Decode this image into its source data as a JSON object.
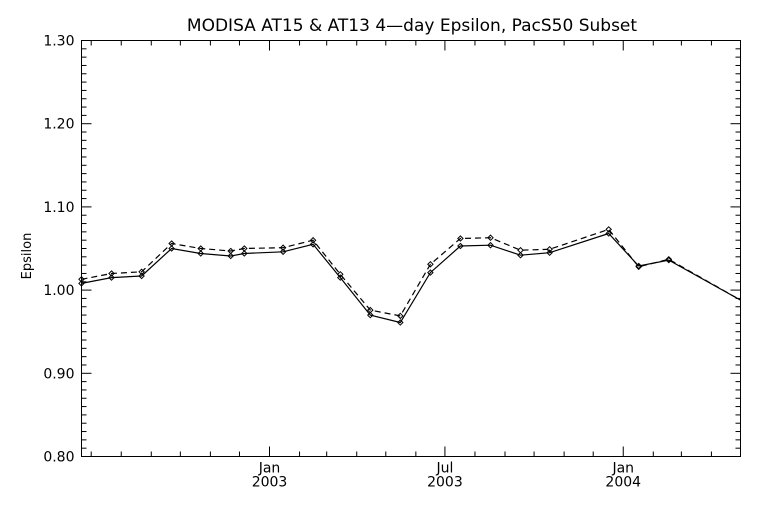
{
  "chart_data": {
    "type": "line",
    "title": "MODISA AT15 & AT13 4—day Epsilon, PacS50 Subset",
    "xlabel": "",
    "ylabel": "Epsilon",
    "ylim": [
      0.8,
      1.3
    ],
    "xlim": [
      "2002-06-21",
      "2004-05-01"
    ],
    "yticks": [
      "0.80",
      "0.90",
      "1.00",
      "1.10",
      "1.20",
      "1.30"
    ],
    "xticks": [
      {
        "date": "2003-01-01",
        "label_top": "Jan",
        "label_bottom": "2003"
      },
      {
        "date": "2003-07-01",
        "label_top": "Jul",
        "label_bottom": "2003"
      },
      {
        "date": "2004-01-01",
        "label_top": "Jan",
        "label_bottom": "2004"
      }
    ],
    "x_minor_ticks": [
      "2002-07-01",
      "2002-08-01",
      "2002-09-01",
      "2002-10-01",
      "2002-11-01",
      "2002-12-01",
      "2003-02-01",
      "2003-03-01",
      "2003-04-01",
      "2003-05-01",
      "2003-06-01",
      "2003-08-01",
      "2003-09-01",
      "2003-10-01",
      "2003-11-01",
      "2003-12-01",
      "2004-02-01",
      "2004-03-01",
      "2004-04-01"
    ],
    "grid": false,
    "series": [
      {
        "style": "solid",
        "color": "#000000",
        "points": [
          {
            "x": "2002-06-21",
            "y": 1.008
          },
          {
            "x": "2002-07-22",
            "y": 1.015
          },
          {
            "x": "2002-08-22",
            "y": 1.017
          },
          {
            "x": "2002-09-22",
            "y": 1.05
          },
          {
            "x": "2002-10-22",
            "y": 1.044
          },
          {
            "x": "2002-11-22",
            "y": 1.041
          },
          {
            "x": "2002-12-06",
            "y": 1.044
          },
          {
            "x": "2003-01-15",
            "y": 1.046
          },
          {
            "x": "2003-02-15",
            "y": 1.055
          },
          {
            "x": "2003-03-15",
            "y": 1.015
          },
          {
            "x": "2003-04-15",
            "y": 0.97
          },
          {
            "x": "2003-05-16",
            "y": 0.961
          },
          {
            "x": "2003-06-16",
            "y": 1.021
          },
          {
            "x": "2003-07-17",
            "y": 1.053
          },
          {
            "x": "2003-08-17",
            "y": 1.054
          },
          {
            "x": "2003-09-17",
            "y": 1.042
          },
          {
            "x": "2003-10-17",
            "y": 1.045
          },
          {
            "x": "2003-12-17",
            "y": 1.068
          },
          {
            "x": "2004-01-17",
            "y": 1.029
          },
          {
            "x": "2004-02-17",
            "y": 1.036
          },
          {
            "x": "2004-05-01",
            "y": 0.988
          }
        ]
      },
      {
        "style": "dashed",
        "color": "#000000",
        "points": [
          {
            "x": "2002-06-21",
            "y": 1.013
          },
          {
            "x": "2002-07-22",
            "y": 1.02
          },
          {
            "x": "2002-08-22",
            "y": 1.022
          },
          {
            "x": "2002-09-22",
            "y": 1.056
          },
          {
            "x": "2002-10-22",
            "y": 1.05
          },
          {
            "x": "2002-11-22",
            "y": 1.047
          },
          {
            "x": "2002-12-06",
            "y": 1.05
          },
          {
            "x": "2003-01-15",
            "y": 1.051
          },
          {
            "x": "2003-02-15",
            "y": 1.06
          },
          {
            "x": "2003-03-15",
            "y": 1.019
          },
          {
            "x": "2003-04-15",
            "y": 0.976
          },
          {
            "x": "2003-05-16",
            "y": 0.969
          },
          {
            "x": "2003-06-16",
            "y": 1.031
          },
          {
            "x": "2003-07-17",
            "y": 1.062
          },
          {
            "x": "2003-08-17",
            "y": 1.063
          },
          {
            "x": "2003-09-17",
            "y": 1.048
          },
          {
            "x": "2003-10-17",
            "y": 1.049
          },
          {
            "x": "2003-12-17",
            "y": 1.073
          },
          {
            "x": "2004-01-17",
            "y": 1.028
          },
          {
            "x": "2004-02-17",
            "y": 1.037
          },
          {
            "x": "2004-05-01",
            "y": 0.988
          }
        ]
      }
    ]
  }
}
